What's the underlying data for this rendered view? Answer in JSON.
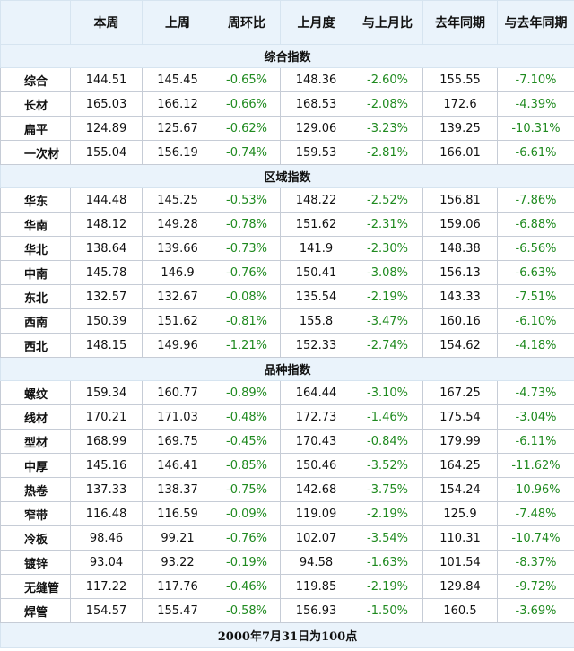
{
  "headers": [
    "",
    "本周",
    "上周",
    "周环比",
    "上月度",
    "与上月比",
    "去年同期",
    "与去年同期"
  ],
  "sections": [
    {
      "title": "综合指数",
      "rows": [
        [
          "综合",
          "144.51",
          "145.45",
          "-0.65%",
          "148.36",
          "-2.60%",
          "155.55",
          "-7.10%"
        ],
        [
          "长材",
          "165.03",
          "166.12",
          "-0.66%",
          "168.53",
          "-2.08%",
          "172.6",
          "-4.39%"
        ],
        [
          "扁平",
          "124.89",
          "125.67",
          "-0.62%",
          "129.06",
          "-3.23%",
          "139.25",
          "-10.31%"
        ],
        [
          "一次材",
          "155.04",
          "156.19",
          "-0.74%",
          "159.53",
          "-2.81%",
          "166.01",
          "-6.61%"
        ]
      ]
    },
    {
      "title": "区域指数",
      "rows": [
        [
          "华东",
          "144.48",
          "145.25",
          "-0.53%",
          "148.22",
          "-2.52%",
          "156.81",
          "-7.86%"
        ],
        [
          "华南",
          "148.12",
          "149.28",
          "-0.78%",
          "151.62",
          "-2.31%",
          "159.06",
          "-6.88%"
        ],
        [
          "华北",
          "138.64",
          "139.66",
          "-0.73%",
          "141.9",
          "-2.30%",
          "148.38",
          "-6.56%"
        ],
        [
          "中南",
          "145.78",
          "146.9",
          "-0.76%",
          "150.41",
          "-3.08%",
          "156.13",
          "-6.63%"
        ],
        [
          "东北",
          "132.57",
          "132.67",
          "-0.08%",
          "135.54",
          "-2.19%",
          "143.33",
          "-7.51%"
        ],
        [
          "西南",
          "150.39",
          "151.62",
          "-0.81%",
          "155.8",
          "-3.47%",
          "160.16",
          "-6.10%"
        ],
        [
          "西北",
          "148.15",
          "149.96",
          "-1.21%",
          "152.33",
          "-2.74%",
          "154.62",
          "-4.18%"
        ]
      ]
    },
    {
      "title": "品种指数",
      "rows": [
        [
          "螺纹",
          "159.34",
          "160.77",
          "-0.89%",
          "164.44",
          "-3.10%",
          "167.25",
          "-4.73%"
        ],
        [
          "线材",
          "170.21",
          "171.03",
          "-0.48%",
          "172.73",
          "-1.46%",
          "175.54",
          "-3.04%"
        ],
        [
          "型材",
          "168.99",
          "169.75",
          "-0.45%",
          "170.43",
          "-0.84%",
          "179.99",
          "-6.11%"
        ],
        [
          "中厚",
          "145.16",
          "146.41",
          "-0.85%",
          "150.46",
          "-3.52%",
          "164.25",
          "-11.62%"
        ],
        [
          "热卷",
          "137.33",
          "138.37",
          "-0.75%",
          "142.68",
          "-3.75%",
          "154.24",
          "-10.96%"
        ],
        [
          "窄带",
          "116.48",
          "116.59",
          "-0.09%",
          "119.09",
          "-2.19%",
          "125.9",
          "-7.48%"
        ],
        [
          "冷板",
          "98.46",
          "99.21",
          "-0.76%",
          "102.07",
          "-3.54%",
          "110.31",
          "-10.74%"
        ],
        [
          "镀锌",
          "93.04",
          "93.22",
          "-0.19%",
          "94.58",
          "-1.63%",
          "101.54",
          "-8.37%"
        ],
        [
          "无缝管",
          "117.22",
          "117.76",
          "-0.46%",
          "119.85",
          "-2.19%",
          "129.84",
          "-9.72%"
        ],
        [
          "焊管",
          "154.57",
          "155.47",
          "-0.58%",
          "156.93",
          "-1.50%",
          "160.5",
          "-3.69%"
        ]
      ]
    }
  ],
  "footer": "2000年7月31日为100点",
  "colors": {
    "header_bg": "#eaf3fb",
    "negative": "#1f8a1f",
    "grid": "#c6ccd6"
  }
}
